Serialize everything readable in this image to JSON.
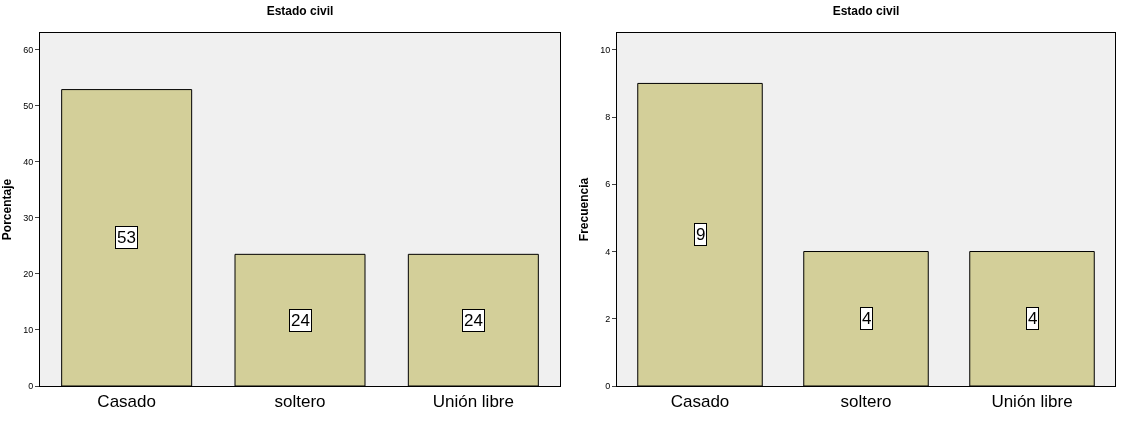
{
  "chart_data": [
    {
      "type": "bar",
      "title": "Estado civil",
      "ylabel": "Porcentaje",
      "categories": [
        "Casado",
        "soltero",
        "Unión libre"
      ],
      "values": [
        52.9,
        23.5,
        23.5
      ],
      "value_labels": [
        "53",
        "24",
        "24"
      ],
      "color": "#d3cf99",
      "ylim": [
        0,
        63
      ],
      "yticks": [
        0,
        10,
        20,
        30,
        40,
        50,
        60
      ],
      "grid": false
    },
    {
      "type": "bar",
      "title": "Estado civil",
      "ylabel": "Frecuencia",
      "categories": [
        "Casado",
        "soltero",
        "Unión libre"
      ],
      "values": [
        9,
        4,
        4
      ],
      "data_labels": true,
      "color": "#d3cf99",
      "ylim": [
        0,
        10.5
      ],
      "yticks": [
        0,
        2,
        4,
        6,
        8,
        10
      ],
      "grid": false
    }
  ]
}
